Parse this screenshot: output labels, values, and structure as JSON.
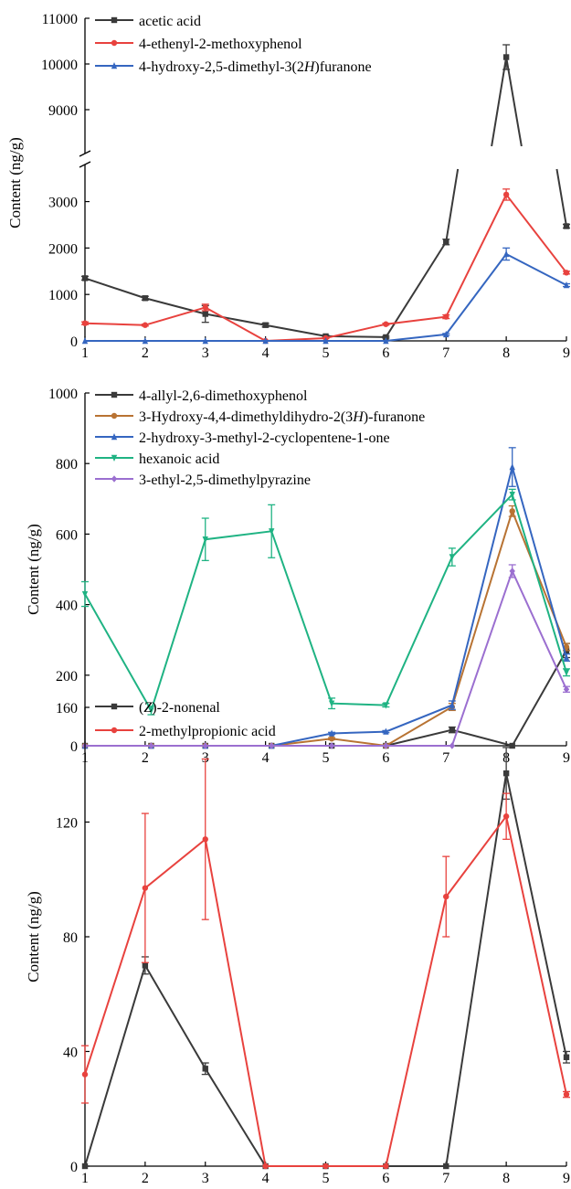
{
  "chart_data": [
    {
      "type": "line",
      "ylabel": "Content (ng/g)",
      "axis_break": true,
      "ylim_lower": [
        0,
        3700
      ],
      "ylim_upper": [
        8200,
        11000
      ],
      "x_ticks": [
        1,
        2,
        3,
        4,
        5,
        6,
        7,
        8,
        9
      ],
      "y_ticks_lower": [
        0,
        1000,
        2000,
        3000
      ],
      "y_ticks_upper": [
        9000,
        10000,
        11000
      ],
      "legend_position": "top-left",
      "series": [
        {
          "name": "acetic acid",
          "color": "#3a3a3a",
          "marker": "square",
          "x": [
            1,
            2,
            3,
            4,
            5,
            6,
            7,
            8,
            9
          ],
          "values": [
            1350,
            920,
            580,
            340,
            100,
            80,
            2130,
            10150,
            2470
          ],
          "errors": [
            40,
            40,
            180,
            40,
            20,
            20,
            60,
            270,
            40
          ]
        },
        {
          "name": "4-ethenyl-2-methoxyphenol",
          "color": "#e8423e",
          "marker": "circle",
          "x": [
            1,
            2,
            3,
            4,
            5,
            6,
            7,
            8,
            9
          ],
          "values": [
            380,
            340,
            720,
            0,
            60,
            360,
            520,
            3150,
            1470
          ],
          "errors": [
            30,
            20,
            70,
            0,
            10,
            20,
            40,
            120,
            30
          ]
        },
        {
          "name": "4-hydroxy-2,5-dimethyl-3(2H)furanone",
          "color": "#3566c0",
          "marker": "triangle-up",
          "x": [
            1,
            2,
            3,
            4,
            5,
            6,
            7,
            8,
            9
          ],
          "values": [
            0,
            0,
            0,
            0,
            0,
            0,
            140,
            1870,
            1200
          ],
          "errors": [
            0,
            0,
            0,
            0,
            0,
            0,
            20,
            130,
            30
          ]
        }
      ]
    },
    {
      "type": "line",
      "ylabel": "Content (ng/g)",
      "ylim": [
        0,
        1000
      ],
      "x_ticks": [
        1,
        2,
        3,
        4,
        5,
        6,
        7,
        8,
        9
      ],
      "y_ticks": [
        0,
        200,
        400,
        600,
        800,
        1000
      ],
      "legend_position": "top-left",
      "series": [
        {
          "name": "4-allyl-2,6-dimethoxyphenol",
          "color": "#3a3a3a",
          "marker": "square",
          "x": [
            1,
            2.1,
            3,
            4.1,
            5.1,
            6,
            7.1,
            8.1,
            9
          ],
          "values": [
            0,
            0,
            0,
            0,
            0,
            0,
            45,
            0,
            270
          ],
          "errors": [
            0,
            0,
            0,
            0,
            0,
            0,
            8,
            0,
            20
          ]
        },
        {
          "name": "3-Hydroxy-4,4-dimethyldihydro-2(3H)-furanone",
          "color": "#b87333",
          "marker": "circle",
          "x": [
            1,
            2.1,
            3,
            4.1,
            5.1,
            6,
            7.1,
            8.1,
            9
          ],
          "values": [
            0,
            0,
            0,
            0,
            20,
            0,
            110,
            665,
            280
          ],
          "errors": [
            0,
            0,
            0,
            0,
            3,
            0,
            10,
            15,
            10
          ]
        },
        {
          "name": "2-hydroxy-3-methyl-2-cyclopentene-1-one",
          "color": "#3566c0",
          "marker": "triangle-up",
          "x": [
            1,
            2.1,
            3,
            4.1,
            5.1,
            6,
            7.1,
            8.1,
            9
          ],
          "values": [
            0,
            0,
            0,
            0,
            35,
            40,
            115,
            790,
            250
          ],
          "errors": [
            0,
            0,
            0,
            0,
            3,
            3,
            12,
            55,
            10
          ]
        },
        {
          "name": "hexanoic acid",
          "color": "#1fb383",
          "marker": "triangle-down",
          "x": [
            1,
            2.1,
            3,
            4.1,
            5.1,
            6,
            7.1,
            8.1,
            9
          ],
          "values": [
            430,
            100,
            585,
            608,
            120,
            115,
            535,
            712,
            208
          ],
          "errors": [
            35,
            12,
            60,
            75,
            15,
            5,
            25,
            15,
            10
          ]
        },
        {
          "name": "3-ethyl-2,5-dimethylpyrazine",
          "color": "#9b6fd0",
          "marker": "diamond",
          "x": [
            1,
            2.1,
            3,
            4.1,
            5.1,
            6,
            7.1,
            8.1,
            9
          ],
          "values": [
            0,
            0,
            0,
            0,
            0,
            0,
            0,
            495,
            160
          ],
          "errors": [
            0,
            0,
            0,
            0,
            0,
            0,
            0,
            18,
            8
          ]
        }
      ]
    },
    {
      "type": "line",
      "ylabel": "Content (ng/g)",
      "ylim": [
        0,
        160
      ],
      "x_ticks": [
        1,
        2,
        3,
        4,
        5,
        6,
        7,
        8,
        9
      ],
      "y_ticks": [
        0,
        40,
        80,
        120,
        160
      ],
      "legend_position": "top-left",
      "series": [
        {
          "name": "(Z)-2-nonenal",
          "color": "#3a3a3a",
          "marker": "square",
          "x": [
            1,
            2,
            3,
            4,
            5,
            6,
            7,
            8,
            9
          ],
          "values": [
            0,
            70,
            34,
            0,
            0,
            0,
            0,
            137,
            38
          ],
          "errors": [
            0,
            3,
            2,
            0,
            0,
            0,
            0,
            9,
            2
          ]
        },
        {
          "name": "2-methylpropionic acid",
          "color": "#e8423e",
          "marker": "circle",
          "x": [
            1,
            2,
            3,
            4,
            5,
            6,
            7,
            8,
            9
          ],
          "values": [
            32,
            97,
            114,
            0,
            0,
            0,
            94,
            122,
            25
          ],
          "errors": [
            10,
            26,
            28,
            0,
            0,
            0,
            14,
            8,
            1
          ]
        }
      ]
    }
  ]
}
